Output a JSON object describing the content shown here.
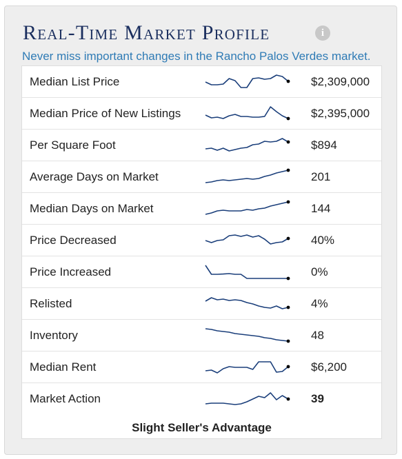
{
  "widget": {
    "title": "Real-Time Market Profile",
    "info_icon": "info-icon",
    "subtitle": "Never miss important changes in the Rancho Palos Verdes market.",
    "line_color": "#1a3e7a",
    "title_color": "#1a2e5e",
    "subtitle_color": "#2f7bb5"
  },
  "rows": [
    {
      "label": "Median List Price",
      "value": "$2,309,000",
      "trend": [
        0.45,
        0.25,
        0.25,
        0.3,
        0.7,
        0.55,
        0.05,
        0.05,
        0.7,
        0.75,
        0.65,
        0.7,
        0.95,
        0.85,
        0.5
      ]
    },
    {
      "label": "Median Price of New Listings",
      "value": "$2,395,000",
      "trend": [
        0.35,
        0.15,
        0.2,
        0.1,
        0.3,
        0.4,
        0.25,
        0.25,
        0.2,
        0.2,
        0.25,
        0.95,
        0.6,
        0.3,
        0.1
      ]
    },
    {
      "label": "Per Square Foot",
      "value": "$894",
      "trend": [
        0.2,
        0.25,
        0.1,
        0.25,
        0.05,
        0.15,
        0.25,
        0.3,
        0.5,
        0.55,
        0.75,
        0.7,
        0.75,
        0.95,
        0.7
      ]
    },
    {
      "label": "Average Days on Market",
      "value": "201",
      "trend": [
        0.05,
        0.1,
        0.2,
        0.25,
        0.2,
        0.25,
        0.3,
        0.35,
        0.3,
        0.35,
        0.5,
        0.6,
        0.75,
        0.85,
        0.95
      ]
    },
    {
      "label": "Median Days on Market",
      "value": "144",
      "trend": [
        0.05,
        0.15,
        0.3,
        0.35,
        0.3,
        0.3,
        0.3,
        0.4,
        0.35,
        0.45,
        0.5,
        0.65,
        0.75,
        0.85,
        0.95
      ]
    },
    {
      "label": "Price Decreased",
      "value": "40%",
      "trend": [
        0.45,
        0.3,
        0.45,
        0.5,
        0.8,
        0.85,
        0.75,
        0.85,
        0.7,
        0.8,
        0.55,
        0.2,
        0.3,
        0.35,
        0.6
      ]
    },
    {
      "label": "Price Increased",
      "value": "0%",
      "trend": [
        0.95,
        0.3,
        0.3,
        0.32,
        0.35,
        0.3,
        0.3,
        0.0,
        0.0,
        0.0,
        0.0,
        0.0,
        0.0,
        0.0,
        0.0
      ]
    },
    {
      "label": "Relisted",
      "value": "4%",
      "trend": [
        0.65,
        0.9,
        0.75,
        0.8,
        0.7,
        0.75,
        0.7,
        0.55,
        0.45,
        0.3,
        0.2,
        0.15,
        0.3,
        0.1,
        0.2
      ]
    },
    {
      "label": "Inventory",
      "value": "48",
      "trend": [
        0.95,
        0.9,
        0.8,
        0.75,
        0.7,
        0.6,
        0.55,
        0.5,
        0.45,
        0.4,
        0.3,
        0.25,
        0.15,
        0.1,
        0.05
      ]
    },
    {
      "label": "Median Rent",
      "value": "$6,200",
      "trend": [
        0.2,
        0.25,
        0.05,
        0.35,
        0.5,
        0.45,
        0.45,
        0.45,
        0.3,
        0.85,
        0.85,
        0.85,
        0.1,
        0.15,
        0.5
      ]
    },
    {
      "label": "Market Action",
      "value": "39",
      "trend": [
        0.1,
        0.15,
        0.15,
        0.15,
        0.1,
        0.05,
        0.1,
        0.25,
        0.45,
        0.65,
        0.55,
        0.9,
        0.4,
        0.7,
        0.45
      ]
    }
  ],
  "market_action_summary": "Slight Seller's Advantage"
}
